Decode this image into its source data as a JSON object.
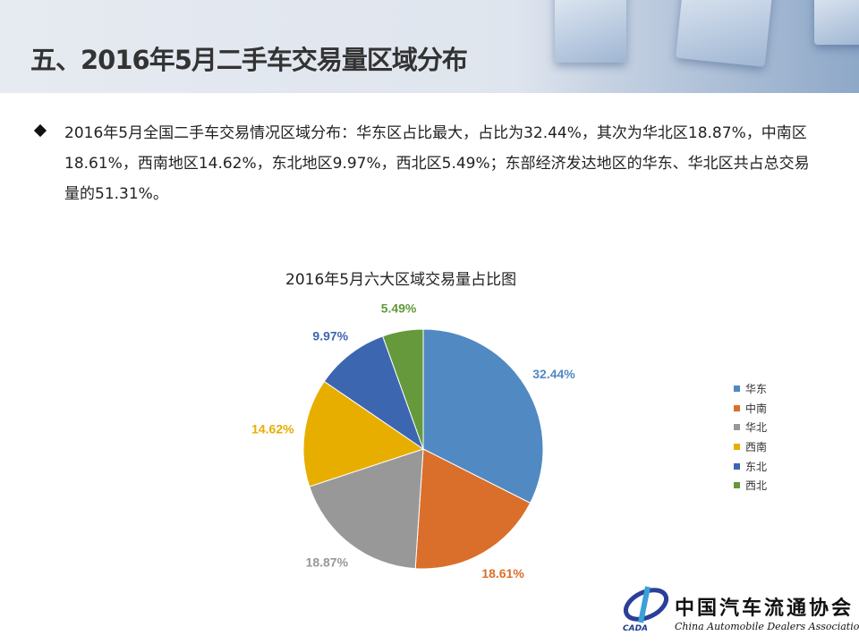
{
  "header": {
    "title": "五、2016年5月二手车交易量区域分布"
  },
  "summary": {
    "text": "2016年5月全国二手车交易情况区域分布：华东区占比最大，占比为32.44%，其次为华北区18.87%，中南区18.61%，西南地区14.62%，东北地区9.97%，西北区5.49%；东部经济发达地区的华东、华北区共占总交易量的51.31%。"
  },
  "chart_data": {
    "type": "pie",
    "title": "2016年5月六大区域交易量占比图",
    "categories": [
      "华东",
      "中南",
      "华北",
      "西南",
      "东北",
      "西北"
    ],
    "values": [
      32.44,
      18.61,
      18.87,
      14.62,
      9.97,
      5.49
    ],
    "labels": [
      "32.44%",
      "18.61%",
      "18.87%",
      "14.62%",
      "9.97%",
      "5.49%"
    ],
    "colors": [
      "#5189C3",
      "#DA6F2B",
      "#989898",
      "#E7AE00",
      "#3D66B0",
      "#65993C"
    ],
    "start_angle": "12 o'clock",
    "direction": "clockwise",
    "legend_position": "right"
  },
  "logo": {
    "cn": "中国汽车流通协会",
    "en": "China Automobile Dealers Association",
    "abbr": "CADA"
  }
}
